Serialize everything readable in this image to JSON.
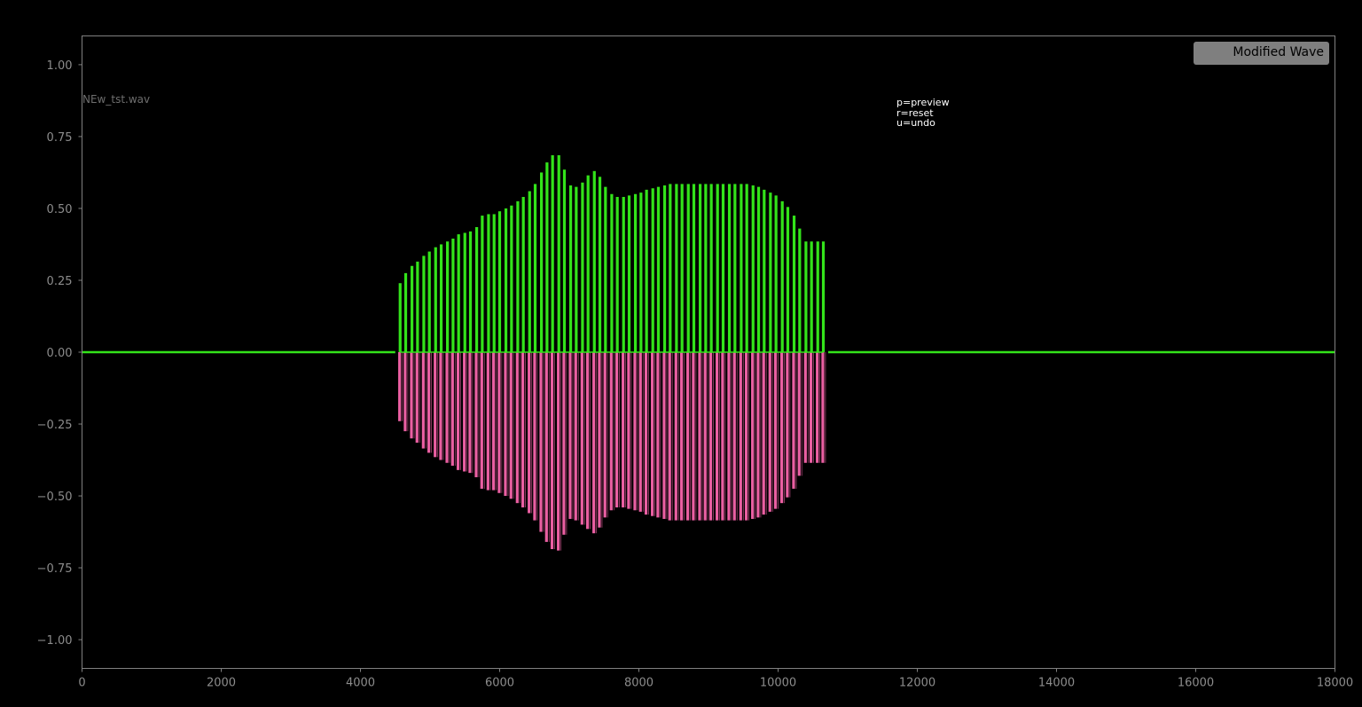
{
  "chart_data": {
    "type": "line",
    "title": "",
    "xlabel": "",
    "ylabel": "",
    "xlim": [
      0,
      18000
    ],
    "ylim": [
      -1.1,
      1.1
    ],
    "x_ticks": [
      0,
      2000,
      4000,
      6000,
      8000,
      10000,
      12000,
      14000,
      16000,
      18000
    ],
    "x_tick_labels": [
      "0",
      "2000",
      "4000",
      "6000",
      "8000",
      "10000",
      "12000",
      "14000",
      "16000",
      "18000"
    ],
    "y_ticks": [
      1.0,
      0.75,
      0.5,
      0.25,
      0.0,
      -0.25,
      -0.5,
      -0.75,
      -1.0
    ],
    "y_tick_labels": [
      "1.00",
      "0.75",
      "0.50",
      "0.25",
      "0.00",
      "−0.25",
      "−0.50",
      "−0.75",
      "−1.00"
    ],
    "grid": false,
    "legend": {
      "position": "top-right",
      "entries": [
        "Modified Wave"
      ]
    },
    "colors": {
      "background": "#000000",
      "axis": "#808080",
      "tick_label": "#8c8c8c",
      "positive_wave": "#33e31a",
      "negative_wave": "#ea5fa2",
      "legend_box": "#7f7f7f",
      "legend_text": "#000000",
      "filename_text": "#6e6e6e",
      "help_text": "#ffffff"
    },
    "filename_label": "NEw_tst.wav",
    "help_lines": [
      "p=preview",
      "r=reset",
      "u=undo"
    ],
    "series": [
      {
        "name": "Modified Wave",
        "baseline_segments": [
          [
            0,
            4500
          ],
          [
            10720,
            18000
          ]
        ],
        "pulses_x": [
          4570,
          4650,
          4740,
          4820,
          4910,
          4990,
          5080,
          5160,
          5250,
          5330,
          5410,
          5500,
          5580,
          5670,
          5750,
          5840,
          5920,
          6000,
          6090,
          6170,
          6260,
          6340,
          6430,
          6510,
          6600,
          6680,
          6760,
          6850,
          6930,
          7020,
          7100,
          7190,
          7270,
          7360,
          7440,
          7520,
          7610,
          7690,
          7780,
          7860,
          7950,
          8030,
          8110,
          8200,
          8280,
          8370,
          8450,
          8540,
          8620,
          8710,
          8790,
          8880,
          8960,
          9040,
          9130,
          9210,
          9300,
          9380,
          9470,
          9550,
          9640,
          9720,
          9800,
          9890,
          9970,
          10060,
          10140,
          10230,
          10310,
          10400,
          10480,
          10570,
          10650
        ],
        "pulses_top": [
          0.24,
          0.275,
          0.3,
          0.315,
          0.335,
          0.35,
          0.365,
          0.375,
          0.385,
          0.395,
          0.41,
          0.415,
          0.42,
          0.435,
          0.475,
          0.48,
          0.48,
          0.49,
          0.5,
          0.51,
          0.525,
          0.54,
          0.56,
          0.585,
          0.625,
          0.66,
          0.685,
          0.685,
          0.635,
          0.58,
          0.575,
          0.59,
          0.615,
          0.63,
          0.61,
          0.575,
          0.55,
          0.54,
          0.54,
          0.545,
          0.55,
          0.555,
          0.565,
          0.57,
          0.575,
          0.58,
          0.585,
          0.585,
          0.585,
          0.585,
          0.585,
          0.585,
          0.585,
          0.585,
          0.585,
          0.585,
          0.585,
          0.585,
          0.585,
          0.585,
          0.58,
          0.575,
          0.565,
          0.555,
          0.545,
          0.525,
          0.505,
          0.475,
          0.43,
          0.385,
          0.385,
          0.385,
          0.385
        ],
        "pulses_bottom": [
          -0.24,
          -0.275,
          -0.3,
          -0.315,
          -0.335,
          -0.35,
          -0.365,
          -0.375,
          -0.385,
          -0.395,
          -0.41,
          -0.415,
          -0.42,
          -0.435,
          -0.475,
          -0.48,
          -0.48,
          -0.49,
          -0.5,
          -0.51,
          -0.525,
          -0.54,
          -0.56,
          -0.585,
          -0.625,
          -0.66,
          -0.685,
          -0.69,
          -0.635,
          -0.58,
          -0.585,
          -0.6,
          -0.615,
          -0.63,
          -0.61,
          -0.575,
          -0.55,
          -0.54,
          -0.54,
          -0.545,
          -0.55,
          -0.555,
          -0.565,
          -0.57,
          -0.575,
          -0.58,
          -0.585,
          -0.585,
          -0.585,
          -0.585,
          -0.585,
          -0.585,
          -0.585,
          -0.585,
          -0.585,
          -0.585,
          -0.585,
          -0.585,
          -0.585,
          -0.585,
          -0.58,
          -0.575,
          -0.565,
          -0.555,
          -0.545,
          -0.525,
          -0.505,
          -0.475,
          -0.43,
          -0.385,
          -0.385,
          -0.385,
          -0.385
        ]
      }
    ]
  }
}
